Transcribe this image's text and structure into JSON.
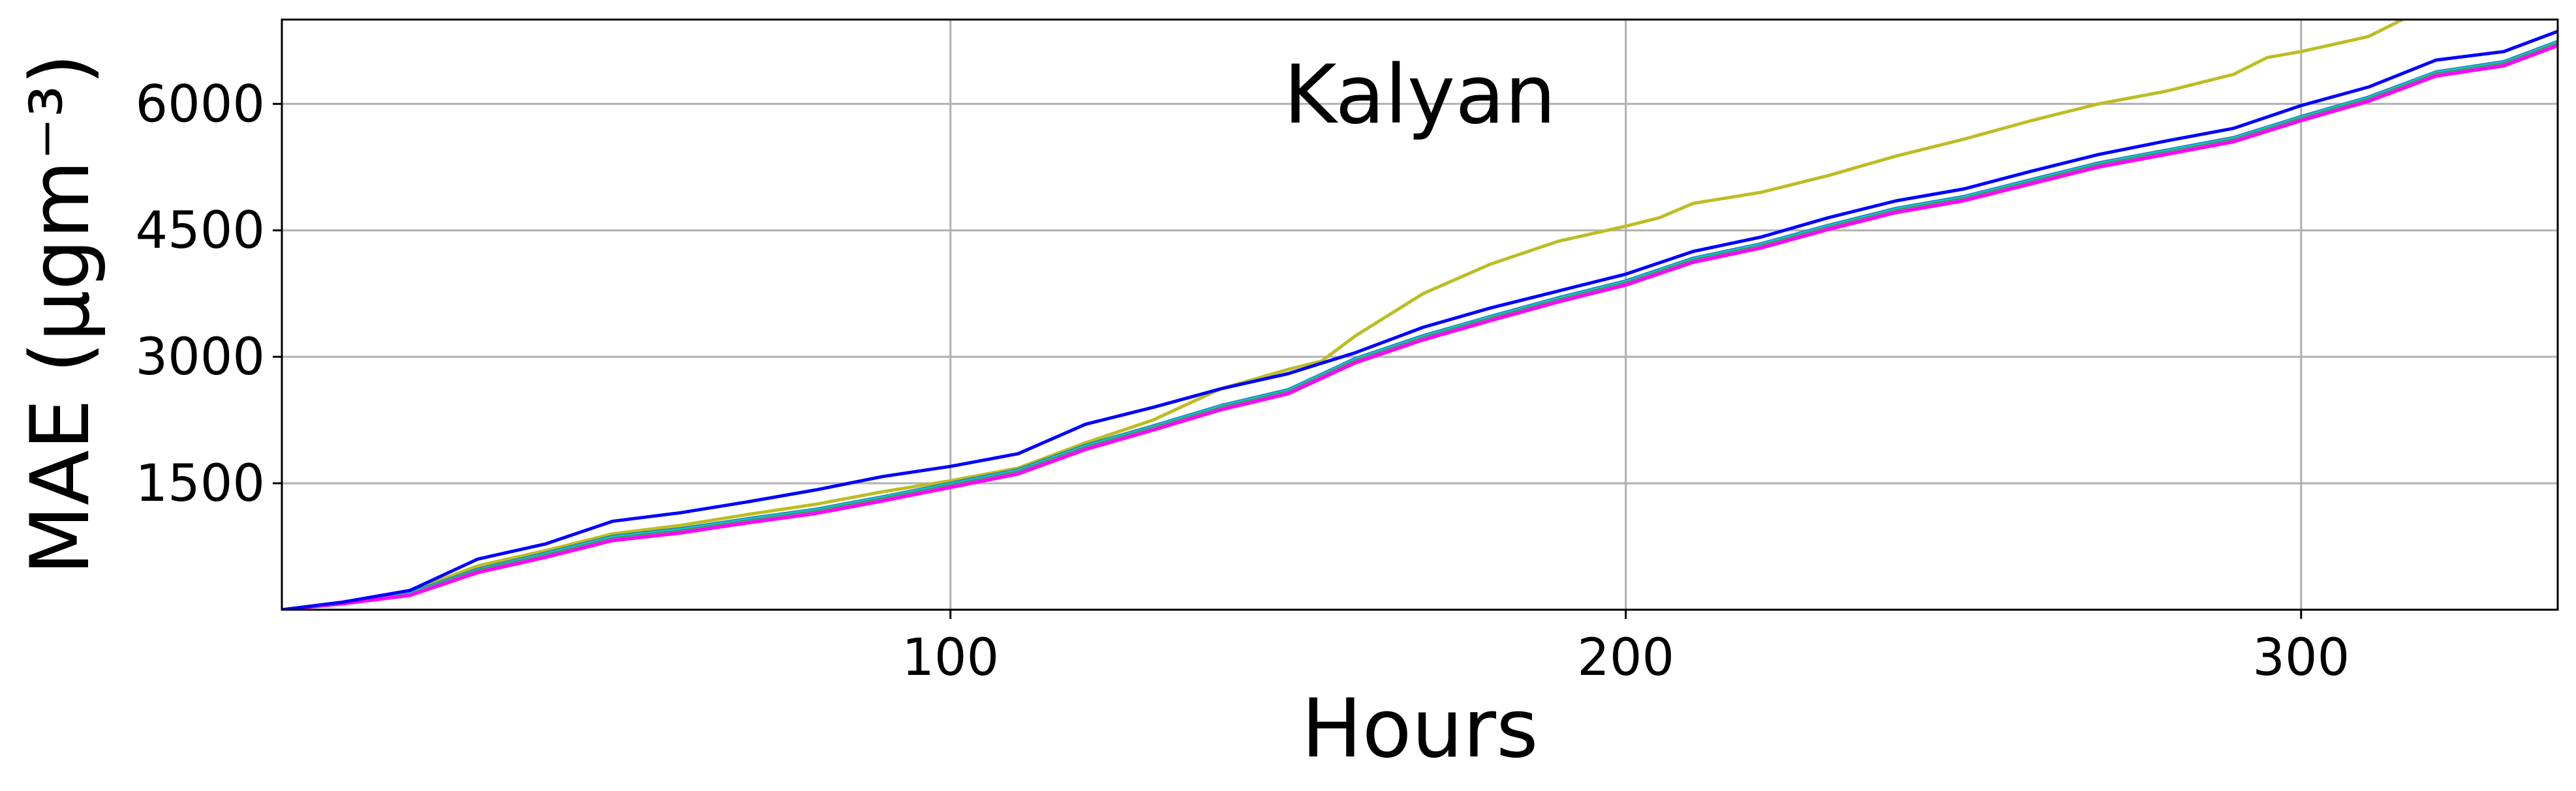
{
  "chart_data": {
    "type": "line",
    "title": "Kalyan",
    "xlabel": "Hours",
    "ylabel": "MAE (μgm⁻³)",
    "xlim": [
      1,
      338
    ],
    "ylim": [
      0,
      7000
    ],
    "xticks": [
      100,
      200,
      300
    ],
    "yticks": [
      1500,
      3000,
      4500,
      6000
    ],
    "grid": true,
    "series": [
      {
        "color": "#bcbd22",
        "x": [
          1,
          10,
          20,
          30,
          40,
          50,
          60,
          70,
          80,
          90,
          100,
          110,
          120,
          130,
          140,
          150,
          155,
          160,
          165,
          170,
          180,
          190,
          200,
          205,
          210,
          220,
          230,
          240,
          250,
          260,
          270,
          280,
          290,
          295,
          300,
          310,
          315
        ],
        "y": [
          0,
          90,
          220,
          520,
          700,
          900,
          1000,
          1130,
          1250,
          1400,
          1530,
          1680,
          1980,
          2250,
          2620,
          2850,
          2950,
          3250,
          3500,
          3750,
          4100,
          4370,
          4550,
          4650,
          4820,
          4950,
          5150,
          5380,
          5580,
          5800,
          6000,
          6150,
          6350,
          6550,
          6620,
          6800,
          7000
        ]
      },
      {
        "color": "#1f77b4",
        "x": [
          1,
          10,
          20,
          30,
          40,
          50,
          60,
          70,
          80,
          90,
          100,
          110,
          120,
          130,
          140,
          150,
          160,
          170,
          180,
          190,
          200,
          210,
          220,
          230,
          240,
          250,
          260,
          270,
          280,
          290,
          300,
          310,
          320,
          330,
          338
        ],
        "y": [
          0,
          85,
          200,
          480,
          670,
          870,
          960,
          1080,
          1190,
          1340,
          1500,
          1660,
          1950,
          2180,
          2420,
          2610,
          2980,
          3250,
          3480,
          3700,
          3900,
          4170,
          4340,
          4560,
          4760,
          4900,
          5100,
          5300,
          5450,
          5600,
          5850,
          6080,
          6380,
          6500,
          6740
        ]
      },
      {
        "color": "#17becf",
        "x": [
          1,
          10,
          20,
          30,
          40,
          50,
          60,
          70,
          80,
          90,
          100,
          110,
          120,
          130,
          140,
          150,
          160,
          170,
          180,
          190,
          200,
          210,
          220,
          230,
          240,
          250,
          260,
          270,
          280,
          290,
          300,
          310,
          320,
          330,
          338
        ],
        "y": [
          0,
          80,
          190,
          470,
          660,
          860,
          950,
          1070,
          1180,
          1330,
          1490,
          1650,
          1940,
          2170,
          2410,
          2600,
          2970,
          3240,
          3470,
          3690,
          3890,
          4160,
          4330,
          4550,
          4750,
          4890,
          5090,
          5290,
          5440,
          5590,
          5840,
          6070,
          6370,
          6490,
          6730
        ]
      },
      {
        "color": "#2ca02c",
        "x": [
          1,
          10,
          20,
          30,
          40,
          50,
          60,
          70,
          80,
          90,
          100,
          110,
          120,
          130,
          140,
          150,
          160,
          170,
          180,
          190,
          200,
          210,
          220,
          230,
          240,
          250,
          260,
          270,
          280,
          290,
          300,
          310,
          320,
          330,
          338
        ],
        "y": [
          0,
          75,
          180,
          460,
          640,
          840,
          930,
          1050,
          1160,
          1310,
          1470,
          1630,
          1920,
          2150,
          2390,
          2580,
          2950,
          3220,
          3450,
          3670,
          3870,
          4140,
          4310,
          4530,
          4730,
          4870,
          5070,
          5270,
          5420,
          5570,
          5820,
          6050,
          6350,
          6470,
          6710
        ]
      },
      {
        "color": "#9467bd",
        "x": [
          1,
          10,
          20,
          30,
          40,
          50,
          60,
          70,
          80,
          90,
          100,
          110,
          120,
          130,
          140,
          150,
          160,
          170,
          180,
          190,
          200,
          210,
          220,
          230,
          240,
          250,
          260,
          270,
          280,
          290,
          300,
          310,
          320,
          330,
          338
        ],
        "y": [
          0,
          72,
          175,
          450,
          630,
          830,
          920,
          1040,
          1150,
          1300,
          1460,
          1620,
          1910,
          2140,
          2380,
          2570,
          2940,
          3210,
          3440,
          3660,
          3860,
          4130,
          4300,
          4520,
          4720,
          4860,
          5060,
          5260,
          5410,
          5560,
          5810,
          6040,
          6340,
          6460,
          6700
        ]
      },
      {
        "color": "#ff00ff",
        "x": [
          1,
          10,
          20,
          30,
          40,
          50,
          60,
          70,
          80,
          90,
          100,
          110,
          120,
          130,
          140,
          150,
          160,
          170,
          180,
          190,
          200,
          210,
          220,
          230,
          240,
          250,
          260,
          270,
          280,
          290,
          300,
          310,
          320,
          330,
          338
        ],
        "y": [
          0,
          70,
          170,
          440,
          620,
          820,
          910,
          1030,
          1140,
          1290,
          1450,
          1610,
          1900,
          2130,
          2370,
          2560,
          2930,
          3200,
          3430,
          3650,
          3850,
          4120,
          4290,
          4510,
          4710,
          4850,
          5050,
          5250,
          5400,
          5550,
          5800,
          6030,
          6330,
          6450,
          6690
        ]
      },
      {
        "color": "#0000ff",
        "x": [
          1,
          10,
          20,
          30,
          40,
          50,
          60,
          70,
          80,
          90,
          100,
          110,
          120,
          130,
          140,
          150,
          160,
          170,
          180,
          190,
          200,
          210,
          220,
          230,
          240,
          250,
          260,
          270,
          280,
          290,
          300,
          310,
          320,
          330,
          338
        ],
        "y": [
          0,
          90,
          230,
          600,
          780,
          1050,
          1150,
          1280,
          1420,
          1580,
          1700,
          1850,
          2200,
          2400,
          2620,
          2800,
          3050,
          3350,
          3580,
          3780,
          3980,
          4250,
          4420,
          4650,
          4850,
          4990,
          5200,
          5400,
          5560,
          5710,
          5980,
          6200,
          6520,
          6620,
          6860
        ]
      }
    ]
  }
}
